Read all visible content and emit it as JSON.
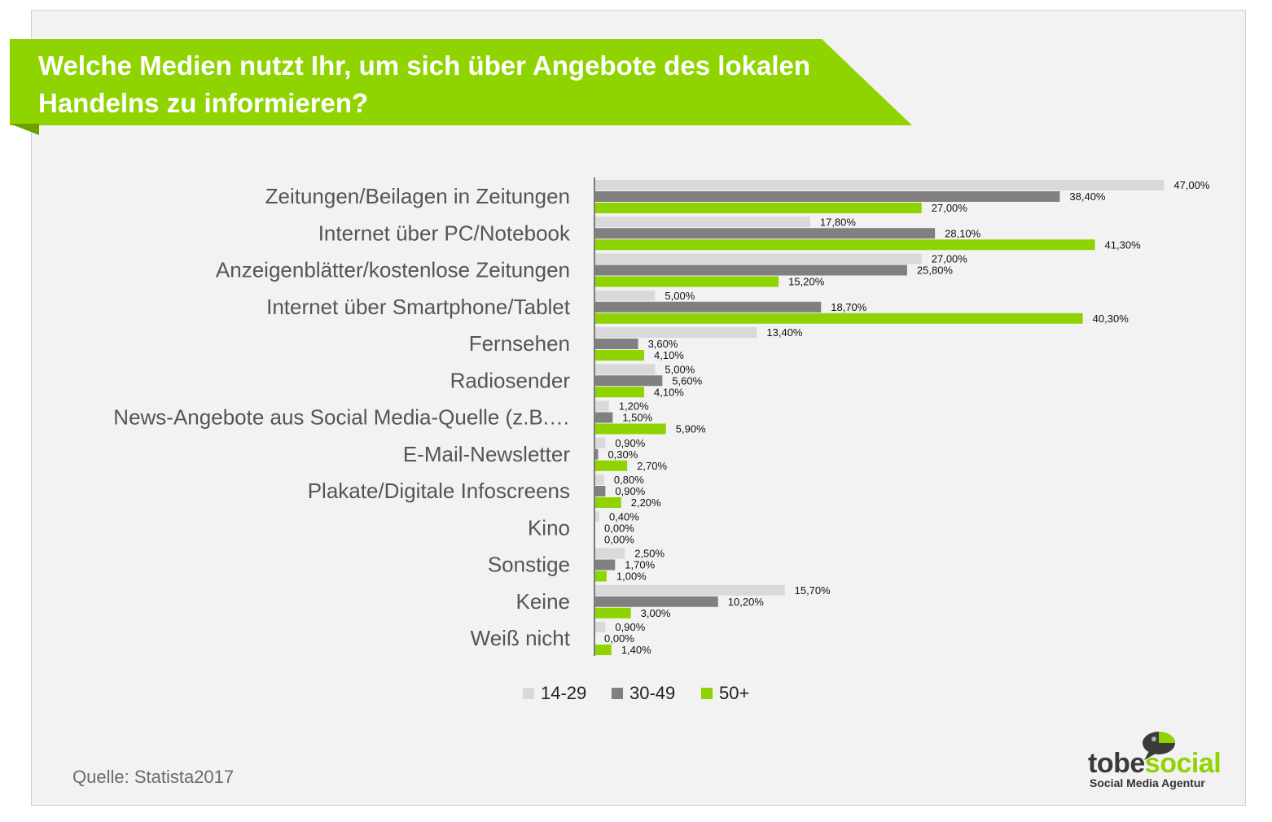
{
  "header": {
    "title": "Welche Medien nutzt Ihr, um sich über Angebote des lokalen Handelns zu informieren?"
  },
  "footer": {
    "source": "Quelle: Statista2017"
  },
  "logo": {
    "word_dark": "tobe",
    "word_green": "social",
    "subtitle": "Social Media Agentur",
    "icon": "speech-bubble-icon"
  },
  "chart_data": {
    "type": "bar",
    "orientation": "horizontal",
    "title": "Welche Medien nutzt Ihr, um sich über Angebote des lokalen Handelns zu informieren?",
    "categories": [
      "Zeitungen/Beilagen in Zeitungen",
      "Internet über PC/Notebook",
      "Anzeigenblätter/kostenlose Zeitungen",
      "Internet über Smartphone/Tablet",
      "Fernsehen",
      "Radiosender",
      "News-Angebote aus Social Media-Quelle (z.B.…",
      "E-Mail-Newsletter",
      "Plakate/Digitale Infoscreens",
      "Kino",
      "Sonstige",
      "Keine",
      "Weiß nicht"
    ],
    "series": [
      {
        "name": "14-29",
        "color": "#d9d9d9",
        "values": [
          47.0,
          17.8,
          27.0,
          5.0,
          13.4,
          5.0,
          1.2,
          0.9,
          0.8,
          0.4,
          2.5,
          15.7,
          0.9
        ],
        "labels": [
          "47,00%",
          "17,80%",
          "27,00%",
          "5,00%",
          "13,40%",
          "5,00%",
          "1,20%",
          "0,90%",
          "0,80%",
          "0,40%",
          "2,50%",
          "15,70%",
          "0,90%"
        ]
      },
      {
        "name": "30-49",
        "color": "#808080",
        "values": [
          38.4,
          28.1,
          25.8,
          18.7,
          3.6,
          5.6,
          1.5,
          0.3,
          0.9,
          0.0,
          1.7,
          10.2,
          0.0
        ],
        "labels": [
          "38,40%",
          "28,10%",
          "25,80%",
          "18,70%",
          "3,60%",
          "5,60%",
          "1,50%",
          "0,30%",
          "0,90%",
          "0,00%",
          "1,70%",
          "10,20%",
          "0,00%"
        ]
      },
      {
        "name": "50+",
        "color": "#8fd400",
        "values": [
          27.0,
          41.3,
          15.2,
          40.3,
          4.1,
          4.1,
          5.9,
          2.7,
          2.2,
          0.0,
          1.0,
          3.0,
          1.4
        ],
        "labels": [
          "27,00%",
          "41,30%",
          "15,20%",
          "40,30%",
          "4,10%",
          "4,10%",
          "5,90%",
          "2,70%",
          "2,20%",
          "0,00%",
          "1,00%",
          "3,00%",
          "1,40%"
        ]
      }
    ],
    "xlim": [
      0,
      50
    ],
    "grid": false,
    "legend": "bottom"
  }
}
